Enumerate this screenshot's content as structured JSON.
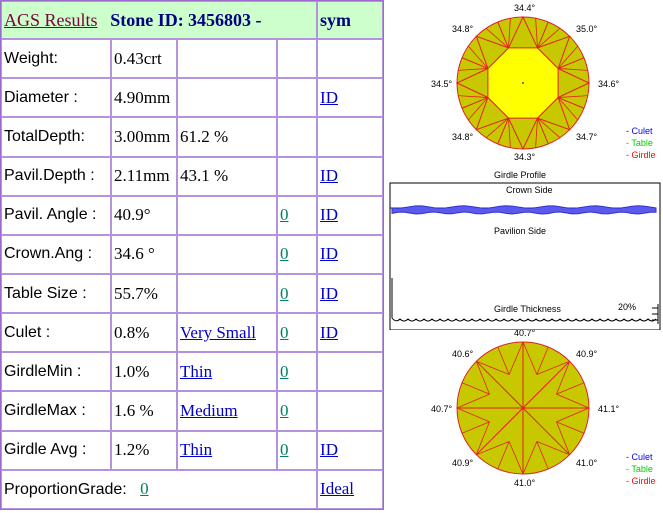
{
  "header": {
    "title": "AGS Results",
    "stone_id_label": "Stone ID:",
    "stone_id": "3456803 -",
    "sym_label": "sym"
  },
  "rows": [
    {
      "label": "Weight:",
      "value": "0.43crt",
      "pct": "",
      "grade": "",
      "score": "",
      "link": ""
    },
    {
      "label": "Diameter :",
      "value": "4.90mm",
      "pct": "",
      "grade": "",
      "score": "",
      "link": "ID"
    },
    {
      "label": "TotalDepth:",
      "value": "3.00mm",
      "pct": "61.2 %",
      "grade": "",
      "score": "",
      "link": ""
    },
    {
      "label": "Pavil.Depth :",
      "value": "2.11mm",
      "pct": "43.1 %",
      "grade": "",
      "score": "",
      "link": "ID"
    },
    {
      "label": "Pavil. Angle :",
      "value": "40.9°",
      "pct": "",
      "grade": "",
      "score": "0",
      "link": "ID "
    },
    {
      "label": "Crown.Ang :",
      "value": "34.6 °",
      "pct": "",
      "grade": "",
      "score": "0",
      "link": "ID"
    },
    {
      "label": "Table Size :",
      "value": "55.7%",
      "pct": "",
      "grade": "",
      "score": "0",
      "link": "ID"
    },
    {
      "label": "Culet :",
      "value": "0.8%",
      "pct": "",
      "grade": "Very Small",
      "score": "0",
      "link": "ID"
    },
    {
      "label": "GirdleMin :",
      "value": "1.0%",
      "pct": "",
      "grade": "Thin",
      "score": "0",
      "link": ""
    },
    {
      "label": "GirdleMax :",
      "value": "1.6 %",
      "pct": "",
      "grade": "Medium ",
      "score": "0",
      "link": ""
    },
    {
      "label": "Girdle Avg :",
      "value": "1.2%",
      "pct": "",
      "grade": "Thin",
      "score": "0 ",
      "link": "ID "
    }
  ],
  "footer": {
    "label": "ProportionGrade:",
    "score": "0",
    "result": "Ideal "
  },
  "crown_diagram": {
    "angles": {
      "top": "34.4°",
      "top_left": "34.8°",
      "top_right": "35.0°",
      "left": "34.5°",
      "right": "34.6°",
      "bottom_left": "34.8°",
      "bottom_right": "34.7°",
      "bottom": "34.3°"
    },
    "legend": [
      "- Culet",
      "- Table",
      "- Girdle"
    ],
    "legend_colors": [
      "#0000ff",
      "#00cc00",
      "#ff0000"
    ]
  },
  "girdle_profile": {
    "title": "Girdle Profile",
    "crown_side": "Crown Side",
    "pavilion_side": "Pavilion Side",
    "thickness_label": "Girdle Thickness",
    "thickness_pct": "20%"
  },
  "pavilion_diagram": {
    "angles": {
      "top": "40.7°",
      "top_left": "40.6°",
      "top_right": "40.9°",
      "left": "40.7°",
      "right": "41.1°",
      "bottom_left": "40.9°",
      "bottom_right": "41.0°",
      "bottom": "41.0°"
    },
    "legend": [
      "- Culet",
      "- Table",
      "- Girdle"
    ],
    "legend_colors": [
      "#0000ff",
      "#00cc00",
      "#ff0000"
    ]
  },
  "colors": {
    "header_bg": "#ccffcc",
    "border": "#b593dc",
    "label_text": "#1a1aa8",
    "diagram_fill_outer": "#c8c800",
    "diagram_fill_table": "#ffff00",
    "diagram_lines": "#dd2222"
  }
}
